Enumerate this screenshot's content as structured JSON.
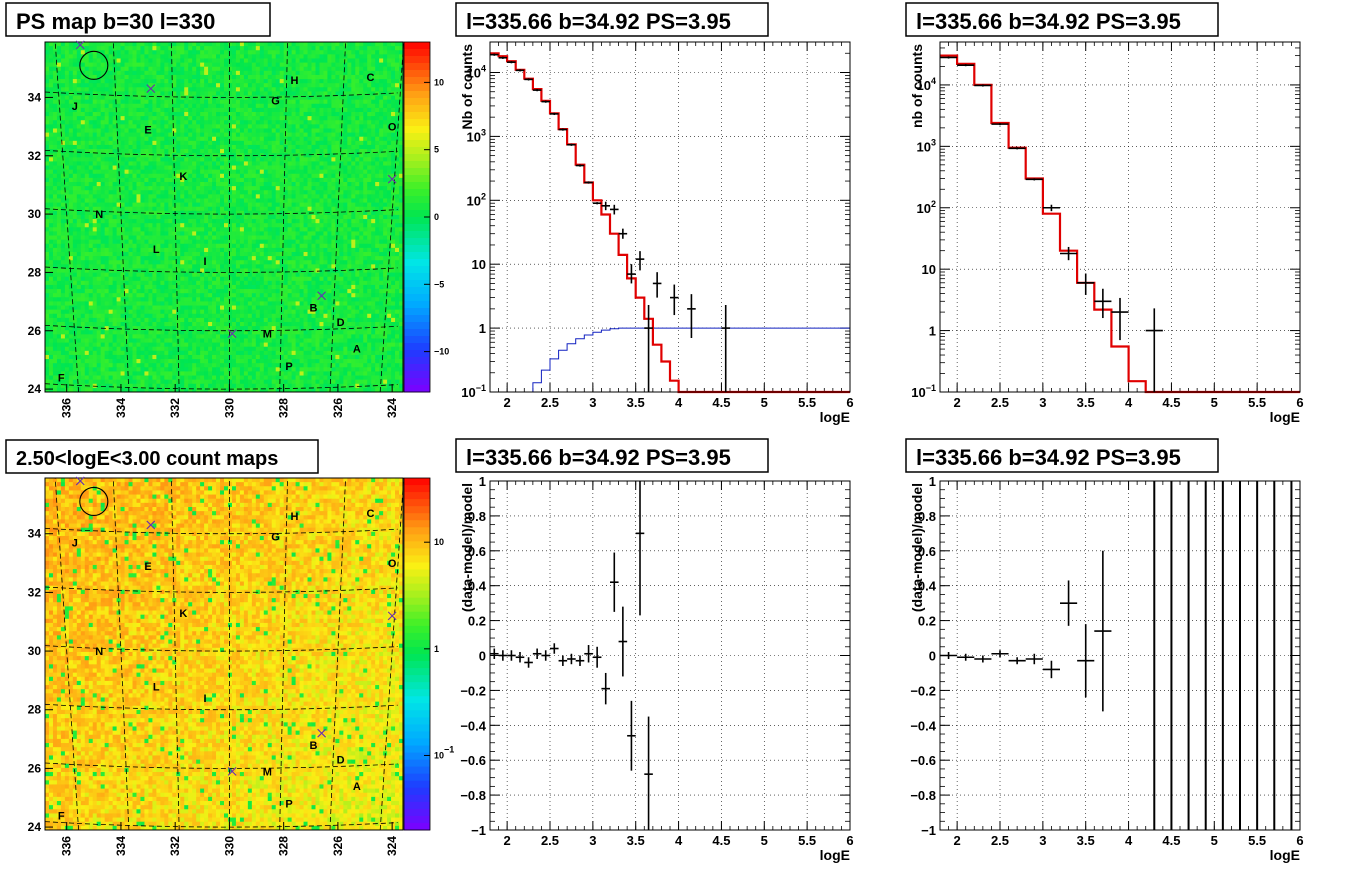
{
  "chart_data": [
    {
      "id": "psmap",
      "type": "heatmap",
      "title": "PS map b=30 l=330",
      "x_ticks": [
        336,
        334,
        332,
        330,
        328,
        326,
        324
      ],
      "y_ticks": [
        24,
        26,
        28,
        30,
        32,
        34
      ],
      "xlim": [
        336.8,
        323.6
      ],
      "ylim": [
        23.9,
        35.9
      ],
      "colorbar": {
        "scale": "linear",
        "range": [
          -13,
          13
        ],
        "ticks": [
          -10,
          -5,
          0,
          5,
          10
        ]
      },
      "base_value": 0.8,
      "sources": [
        {
          "label": "H",
          "l": 327.6,
          "b": 34.6
        },
        {
          "label": "C",
          "l": 324.8,
          "b": 34.7
        },
        {
          "label": "J",
          "l": 335.7,
          "b": 33.7
        },
        {
          "label": "G",
          "l": 328.3,
          "b": 33.9
        },
        {
          "label": "E",
          "l": 333.0,
          "b": 32.9
        },
        {
          "label": "O",
          "l": 324.0,
          "b": 33.0
        },
        {
          "label": "K",
          "l": 331.7,
          "b": 31.3
        },
        {
          "label": "N",
          "l": 334.8,
          "b": 30.0
        },
        {
          "label": "L",
          "l": 332.7,
          "b": 28.8
        },
        {
          "label": "I",
          "l": 330.9,
          "b": 28.4
        },
        {
          "label": "B",
          "l": 326.9,
          "b": 26.8
        },
        {
          "label": "D",
          "l": 325.9,
          "b": 26.3
        },
        {
          "label": "M",
          "l": 328.6,
          "b": 25.9
        },
        {
          "label": "A",
          "l": 325.3,
          "b": 25.4
        },
        {
          "label": "P",
          "l": 327.8,
          "b": 24.8
        },
        {
          "label": "F",
          "l": 336.2,
          "b": 24.4
        }
      ],
      "crosses": [
        {
          "l": 335.5,
          "b": 35.8
        },
        {
          "l": 332.9,
          "b": 34.3
        },
        {
          "l": 326.6,
          "b": 27.2
        },
        {
          "l": 329.9,
          "b": 25.9
        },
        {
          "l": 324.0,
          "b": 31.2
        }
      ],
      "circle": {
        "l": 335.0,
        "b": 35.1
      }
    },
    {
      "id": "countmap",
      "type": "heatmap",
      "title": "2.50<logE<3.00 count maps",
      "x_ticks": [
        336,
        334,
        332,
        330,
        328,
        326,
        324
      ],
      "y_ticks": [
        24,
        26,
        28,
        30,
        32,
        34
      ],
      "xlim": [
        336.8,
        323.6
      ],
      "ylim": [
        23.9,
        35.9
      ],
      "colorbar": {
        "scale": "log",
        "range": [
          0.02,
          40
        ],
        "ticks": [
          10,
          1,
          0.1
        ],
        "tick_labels": [
          "10",
          "1",
          "10^-1"
        ]
      },
      "base_value": 5,
      "sources": [
        {
          "label": "H",
          "l": 327.6,
          "b": 34.6
        },
        {
          "label": "C",
          "l": 324.8,
          "b": 34.7
        },
        {
          "label": "J",
          "l": 335.7,
          "b": 33.7
        },
        {
          "label": "G",
          "l": 328.3,
          "b": 33.9
        },
        {
          "label": "E",
          "l": 333.0,
          "b": 32.9
        },
        {
          "label": "O",
          "l": 324.0,
          "b": 33.0
        },
        {
          "label": "K",
          "l": 331.7,
          "b": 31.3
        },
        {
          "label": "N",
          "l": 334.8,
          "b": 30.0
        },
        {
          "label": "L",
          "l": 332.7,
          "b": 28.8
        },
        {
          "label": "I",
          "l": 330.9,
          "b": 28.4
        },
        {
          "label": "B",
          "l": 326.9,
          "b": 26.8
        },
        {
          "label": "D",
          "l": 325.9,
          "b": 26.3
        },
        {
          "label": "M",
          "l": 328.6,
          "b": 25.9
        },
        {
          "label": "A",
          "l": 325.3,
          "b": 25.4
        },
        {
          "label": "P",
          "l": 327.8,
          "b": 24.8
        },
        {
          "label": "F",
          "l": 336.2,
          "b": 24.4
        }
      ],
      "crosses": [
        {
          "l": 335.5,
          "b": 35.8
        },
        {
          "l": 332.9,
          "b": 34.3
        },
        {
          "l": 326.6,
          "b": 27.2
        },
        {
          "l": 329.9,
          "b": 25.9
        },
        {
          "l": 324.0,
          "b": 31.2
        }
      ],
      "circle": {
        "l": 335.0,
        "b": 35.1
      }
    },
    {
      "id": "spec1",
      "type": "line",
      "title": "l=335.66 b=34.92 PS=3.95",
      "xlabel": "logE",
      "ylabel": "Nb of counts",
      "yscale": "log",
      "xlim": [
        1.8,
        6.0
      ],
      "ylim": [
        0.1,
        30000
      ],
      "x_ticks": [
        2,
        2.5,
        3,
        3.5,
        4,
        4.5,
        5,
        5.5,
        6
      ],
      "x_tick_labels": [
        "2",
        "2.5",
        "3",
        "3.5",
        "4",
        "4.5",
        "5",
        "5.5",
        "6"
      ],
      "y_ticks": [
        0.1,
        1,
        10,
        100,
        1000,
        10000
      ],
      "y_tick_labels": [
        "10^-1",
        "1",
        "10",
        "10^2",
        "10^3",
        "10^4"
      ],
      "grid": true,
      "model_step": {
        "edges": [
          1.8,
          1.9,
          2.0,
          2.1,
          2.2,
          2.3,
          2.4,
          2.5,
          2.6,
          2.7,
          2.8,
          2.9,
          3.0,
          3.1,
          3.2,
          3.3,
          3.4,
          3.5,
          3.6,
          3.7,
          3.8,
          3.9,
          4.0,
          4.1,
          4.2,
          6.0
        ],
        "values": [
          20000,
          18000,
          15000,
          11000,
          8000,
          5500,
          3600,
          2300,
          1300,
          750,
          360,
          190,
          100,
          60,
          30,
          14,
          6,
          3,
          1.4,
          0.55,
          0.3,
          0.15,
          0.08,
          0.04,
          0.01
        ]
      },
      "blue_step": {
        "edges": [
          1.8,
          2.2,
          2.3,
          2.4,
          2.5,
          2.6,
          2.7,
          2.8,
          2.9,
          3.0,
          3.1,
          3.2,
          3.3,
          3.4,
          6.0
        ],
        "values": [
          0.05,
          0.08,
          0.14,
          0.22,
          0.33,
          0.45,
          0.57,
          0.68,
          0.78,
          0.86,
          0.93,
          0.98,
          1.0,
          1.0
        ]
      },
      "data_points": [
        {
          "x": 1.85,
          "y": 19000,
          "xe": 0.05
        },
        {
          "x": 1.95,
          "y": 17000,
          "xe": 0.05
        },
        {
          "x": 2.05,
          "y": 14500,
          "xe": 0.05
        },
        {
          "x": 2.15,
          "y": 10800,
          "xe": 0.05
        },
        {
          "x": 2.25,
          "y": 7800,
          "xe": 0.05
        },
        {
          "x": 2.35,
          "y": 5300,
          "xe": 0.05
        },
        {
          "x": 2.45,
          "y": 3500,
          "xe": 0.05
        },
        {
          "x": 2.55,
          "y": 2250,
          "xe": 0.05
        },
        {
          "x": 2.65,
          "y": 1280,
          "xe": 0.05
        },
        {
          "x": 2.75,
          "y": 740,
          "xe": 0.05
        },
        {
          "x": 2.85,
          "y": 350,
          "xe": 0.05
        },
        {
          "x": 2.95,
          "y": 190,
          "xe": 0.05
        },
        {
          "x": 3.05,
          "y": 90,
          "xe": 0.05
        },
        {
          "x": 3.15,
          "y": 82,
          "xe": 0.05,
          "yl": 70,
          "yh": 95
        },
        {
          "x": 3.25,
          "y": 72,
          "xe": 0.05,
          "yl": 60,
          "yh": 85
        },
        {
          "x": 3.35,
          "y": 30,
          "xe": 0.05,
          "yl": 25,
          "yh": 36
        },
        {
          "x": 3.45,
          "y": 7,
          "xe": 0.05,
          "yl": 5,
          "yh": 10
        },
        {
          "x": 3.55,
          "y": 12,
          "xe": 0.05,
          "yl": 8,
          "yh": 16
        },
        {
          "x": 3.65,
          "y": 1,
          "xe": 0.05,
          "yl": 0.1,
          "yh": 2.3
        },
        {
          "x": 3.75,
          "y": 5,
          "xe": 0.05,
          "yl": 3,
          "yh": 7.5
        },
        {
          "x": 3.95,
          "y": 3,
          "xe": 0.05,
          "yl": 1.6,
          "yh": 4.8
        },
        {
          "x": 4.15,
          "y": 2,
          "xe": 0.05,
          "yl": 0.7,
          "yh": 3.4
        },
        {
          "x": 4.55,
          "y": 1,
          "xe": 0.05,
          "yl": 0.1,
          "yh": 2.3
        }
      ]
    },
    {
      "id": "spec2",
      "type": "line",
      "title": "l=335.66 b=34.92 PS=3.95",
      "xlabel": "logE",
      "ylabel": "nb of counts",
      "yscale": "log",
      "xlim": [
        1.8,
        6.0
      ],
      "ylim": [
        0.1,
        50000
      ],
      "x_ticks": [
        2,
        2.5,
        3,
        3.5,
        4,
        4.5,
        5,
        5.5,
        6
      ],
      "x_tick_labels": [
        "2",
        "2.5",
        "3",
        "3.5",
        "4",
        "4.5",
        "5",
        "5.5",
        "6"
      ],
      "y_ticks": [
        0.1,
        1,
        10,
        100,
        1000,
        10000
      ],
      "y_tick_labels": [
        "10^-1",
        "1",
        "10",
        "10^2",
        "10^3",
        "10^4"
      ],
      "grid": true,
      "model_step": {
        "edges": [
          1.8,
          2.0,
          2.2,
          2.4,
          2.6,
          2.8,
          3.0,
          3.2,
          3.4,
          3.6,
          3.8,
          4.0,
          4.2,
          4.4,
          6.0
        ],
        "values": [
          30000,
          22000,
          10000,
          2400,
          950,
          300,
          80,
          20,
          6,
          2.2,
          0.55,
          0.15,
          0.07,
          0.04
        ]
      },
      "data_points": [
        {
          "x": 1.9,
          "y": 28000,
          "xe": 0.1
        },
        {
          "x": 2.1,
          "y": 21000,
          "xe": 0.1
        },
        {
          "x": 2.3,
          "y": 9800,
          "xe": 0.1
        },
        {
          "x": 2.5,
          "y": 2300,
          "xe": 0.1
        },
        {
          "x": 2.7,
          "y": 930,
          "xe": 0.1
        },
        {
          "x": 2.9,
          "y": 290,
          "xe": 0.1
        },
        {
          "x": 3.1,
          "y": 100,
          "xe": 0.1,
          "yl": 88,
          "yh": 112
        },
        {
          "x": 3.3,
          "y": 18,
          "xe": 0.1,
          "yl": 14,
          "yh": 23
        },
        {
          "x": 3.5,
          "y": 6,
          "xe": 0.1,
          "yl": 3.8,
          "yh": 8.5
        },
        {
          "x": 3.7,
          "y": 3,
          "xe": 0.1,
          "yl": 1.6,
          "yh": 4.8
        },
        {
          "x": 3.9,
          "y": 2,
          "xe": 0.1,
          "yl": 0.7,
          "yh": 3.4
        },
        {
          "x": 4.3,
          "y": 1,
          "xe": 0.1,
          "yl": 0.1,
          "yh": 2.3
        }
      ]
    },
    {
      "id": "resid1",
      "type": "scatter",
      "title": "l=335.66 b=34.92 PS=3.95",
      "xlabel": "logE",
      "ylabel": "(data-model)/model",
      "xlim": [
        1.8,
        6.0
      ],
      "ylim": [
        -1,
        1
      ],
      "x_ticks": [
        2,
        2.5,
        3,
        3.5,
        4,
        4.5,
        5,
        5.5,
        6
      ],
      "x_tick_labels": [
        "2",
        "2.5",
        "3",
        "3.5",
        "4",
        "4.5",
        "5",
        "5.5",
        "6"
      ],
      "y_ticks": [
        -1,
        -0.8,
        -0.6,
        -0.4,
        -0.2,
        0,
        0.2,
        0.4,
        0.6,
        0.8,
        1
      ],
      "y_tick_labels": [
        "−1",
        "−0.8",
        "−0.6",
        "−0.4",
        "−0.2",
        "0",
        "0.2",
        "0.4",
        "0.6",
        "0.8",
        "1"
      ],
      "grid": true,
      "data_points": [
        {
          "x": 1.85,
          "y": 0.01,
          "xe": 0.05,
          "ye": 0.03
        },
        {
          "x": 1.95,
          "y": 0.0,
          "xe": 0.05,
          "ye": 0.03
        },
        {
          "x": 2.05,
          "y": 0.0,
          "xe": 0.05,
          "ye": 0.03
        },
        {
          "x": 2.15,
          "y": -0.01,
          "xe": 0.05,
          "ye": 0.03
        },
        {
          "x": 2.25,
          "y": -0.04,
          "xe": 0.05,
          "ye": 0.03
        },
        {
          "x": 2.35,
          "y": 0.01,
          "xe": 0.05,
          "ye": 0.03
        },
        {
          "x": 2.45,
          "y": 0.0,
          "xe": 0.05,
          "ye": 0.03
        },
        {
          "x": 2.55,
          "y": 0.04,
          "xe": 0.05,
          "ye": 0.03
        },
        {
          "x": 2.65,
          "y": -0.03,
          "xe": 0.05,
          "ye": 0.03
        },
        {
          "x": 2.75,
          "y": -0.02,
          "xe": 0.05,
          "ye": 0.03
        },
        {
          "x": 2.85,
          "y": -0.03,
          "xe": 0.05,
          "ye": 0.03
        },
        {
          "x": 2.95,
          "y": 0.01,
          "xe": 0.05,
          "ye": 0.05
        },
        {
          "x": 3.05,
          "y": -0.01,
          "xe": 0.05,
          "ye": 0.06
        },
        {
          "x": 3.15,
          "y": -0.19,
          "xe": 0.05,
          "ye": 0.09
        },
        {
          "x": 3.25,
          "y": 0.42,
          "xe": 0.05,
          "ye": 0.17
        },
        {
          "x": 3.35,
          "y": 0.08,
          "xe": 0.05,
          "ye": 0.2
        },
        {
          "x": 3.45,
          "y": -0.46,
          "xe": 0.05,
          "ye": 0.2
        },
        {
          "x": 3.55,
          "y": 0.7,
          "xe": 0.05,
          "ye": 0.47
        },
        {
          "x": 3.65,
          "y": -0.68,
          "xe": 0.05,
          "ye": 0.33
        }
      ]
    },
    {
      "id": "resid2",
      "type": "scatter",
      "title": "l=335.66 b=34.92 PS=3.95",
      "xlabel": "logE",
      "ylabel": "(data-model)/model",
      "xlim": [
        1.8,
        6.0
      ],
      "ylim": [
        -1,
        1
      ],
      "x_ticks": [
        2,
        2.5,
        3,
        3.5,
        4,
        4.5,
        5,
        5.5,
        6
      ],
      "x_tick_labels": [
        "2",
        "2.5",
        "3",
        "3.5",
        "4",
        "4.5",
        "5",
        "5.5",
        "6"
      ],
      "y_ticks": [
        -1,
        -0.8,
        -0.6,
        -0.4,
        -0.2,
        0,
        0.2,
        0.4,
        0.6,
        0.8,
        1
      ],
      "y_tick_labels": [
        "−1",
        "−0.8",
        "−0.6",
        "−0.4",
        "−0.2",
        "0",
        "0.2",
        "0.4",
        "0.6",
        "0.8",
        "1"
      ],
      "grid": true,
      "data_points": [
        {
          "x": 1.9,
          "y": 0.0,
          "xe": 0.1,
          "ye": 0.02
        },
        {
          "x": 2.1,
          "y": -0.01,
          "xe": 0.1,
          "ye": 0.02
        },
        {
          "x": 2.3,
          "y": -0.02,
          "xe": 0.1,
          "ye": 0.02
        },
        {
          "x": 2.5,
          "y": 0.01,
          "xe": 0.1,
          "ye": 0.02
        },
        {
          "x": 2.7,
          "y": -0.03,
          "xe": 0.1,
          "ye": 0.02
        },
        {
          "x": 2.9,
          "y": -0.02,
          "xe": 0.1,
          "ye": 0.03
        },
        {
          "x": 3.1,
          "y": -0.08,
          "xe": 0.1,
          "ye": 0.05
        },
        {
          "x": 3.3,
          "y": 0.3,
          "xe": 0.1,
          "ye": 0.13
        },
        {
          "x": 3.5,
          "y": -0.03,
          "xe": 0.1,
          "ye": 0.21
        },
        {
          "x": 3.7,
          "y": 0.14,
          "xe": 0.1,
          "ye": 0.46
        }
      ],
      "vertical_bars_x": [
        4.3,
        4.5,
        4.7,
        4.9,
        5.1,
        5.3,
        5.5,
        5.7,
        5.9
      ]
    }
  ]
}
